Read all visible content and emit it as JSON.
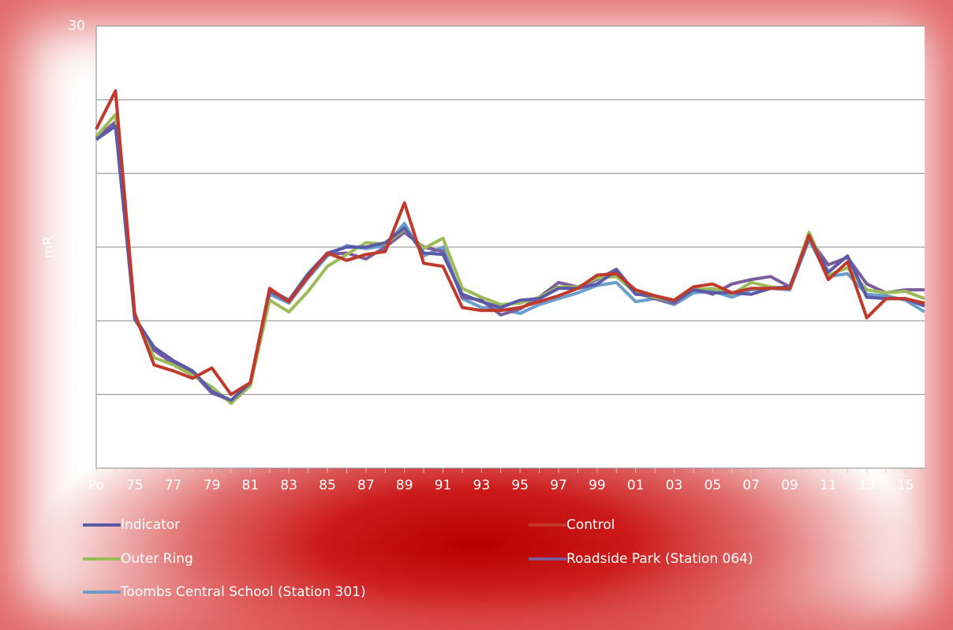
{
  "chart_data": {
    "type": "line",
    "y_label": "mR",
    "categories": [
      "Po",
      null,
      "75",
      null,
      "77",
      null,
      "79",
      null,
      "81",
      null,
      "83",
      null,
      "85",
      null,
      "87",
      null,
      "89",
      null,
      "91",
      null,
      "93",
      null,
      "95",
      null,
      "97",
      null,
      "99",
      null,
      "01",
      null,
      "03",
      null,
      "05",
      null,
      "07",
      null,
      "09",
      null,
      "11",
      null,
      "13",
      null,
      "15",
      null
    ],
    "series": [
      {
        "name": "Indicator",
        "color": "#5a5aa8",
        "values": [
          22.3,
          23.2,
          10.2,
          8.2,
          7.3,
          6.6,
          5.2,
          4.6,
          5.8,
          12.1,
          11.4,
          13.2,
          14.6,
          15,
          15,
          15.3,
          16.3,
          14.6,
          14.5,
          11.8,
          11.3,
          10.9,
          11.4,
          11.5,
          12.2,
          12.2,
          12.5,
          13.4,
          11.8,
          11.7,
          11.3,
          12.1,
          11.9,
          11.9,
          11.8,
          12.2,
          12.3,
          15.7,
          13.3,
          14.4,
          11.6,
          11.5,
          11.5,
          11.0
        ]
      },
      {
        "name": "Control",
        "color": "#c0392b",
        "values": [
          23,
          25.6,
          10.5,
          7,
          6.6,
          6.1,
          6.8,
          5,
          5.8,
          12.2,
          11.3,
          13,
          14.6,
          14.1,
          14.5,
          14.7,
          18,
          13.9,
          13.7,
          10.9,
          10.7,
          10.7,
          10.9,
          11.3,
          11.7,
          12.2,
          13.1,
          13.2,
          12.1,
          11.7,
          11.4,
          12.3,
          12.5,
          11.9,
          12.2,
          12.2,
          12.2,
          15.8,
          12.8,
          14,
          10.2,
          11.5,
          11.5,
          11.2
        ]
      },
      {
        "name": "Outer Ring",
        "color": "#9bbb59",
        "values": [
          22.5,
          24,
          10.3,
          7.5,
          7,
          6.3,
          5.5,
          4.4,
          5.6,
          11.4,
          10.6,
          12,
          13.7,
          14.5,
          15.3,
          15.2,
          16.2,
          14.9,
          15.6,
          12.2,
          11.6,
          11.1,
          11.2,
          11.6,
          12.3,
          12.3,
          12.9,
          13,
          11.9,
          11.6,
          11.3,
          12.1,
          12.2,
          11.8,
          12.6,
          12.3,
          12.2,
          16,
          13.1,
          13.6,
          12.1,
          11.9,
          12,
          11.5
        ]
      },
      {
        "name": "Roadside Park (Station 064)",
        "color": "#7d5c9e",
        "values": [
          22.4,
          23.5,
          10.1,
          8,
          7.1,
          6.5,
          5.1,
          4.6,
          5.7,
          12,
          11.3,
          13.1,
          14.5,
          14.6,
          14.2,
          15,
          16,
          15,
          14.7,
          11.6,
          11.4,
          10.4,
          10.8,
          11.6,
          12.6,
          12.3,
          12.8,
          13.5,
          11.9,
          11.5,
          11.2,
          12.2,
          11.8,
          12.5,
          12.8,
          13,
          12.3,
          15.6,
          13.8,
          14.3,
          12.5,
          11.9,
          12.1,
          12.1
        ]
      },
      {
        "name": "Toombs Central School (Station 301)",
        "color": "#6a9ccc",
        "values": [
          22.4,
          23.3,
          10.2,
          8.1,
          7.2,
          6.5,
          5.2,
          4.5,
          5.7,
          11.8,
          11.2,
          12.9,
          14.4,
          15.1,
          14.9,
          15.1,
          16.6,
          14.4,
          15,
          11.5,
          10.9,
          10.8,
          10.5,
          11.1,
          11.5,
          11.9,
          12.4,
          12.6,
          11.3,
          11.5,
          11.1,
          11.9,
          12,
          11.6,
          12.1,
          12.2,
          12.1,
          15.5,
          13,
          13.2,
          11.8,
          11.7,
          11.4,
          10.6
        ]
      }
    ],
    "ylim": [
      0,
      30
    ],
    "yticks": [
      0,
      5,
      10,
      15,
      20,
      25,
      30
    ],
    "grid": true
  }
}
